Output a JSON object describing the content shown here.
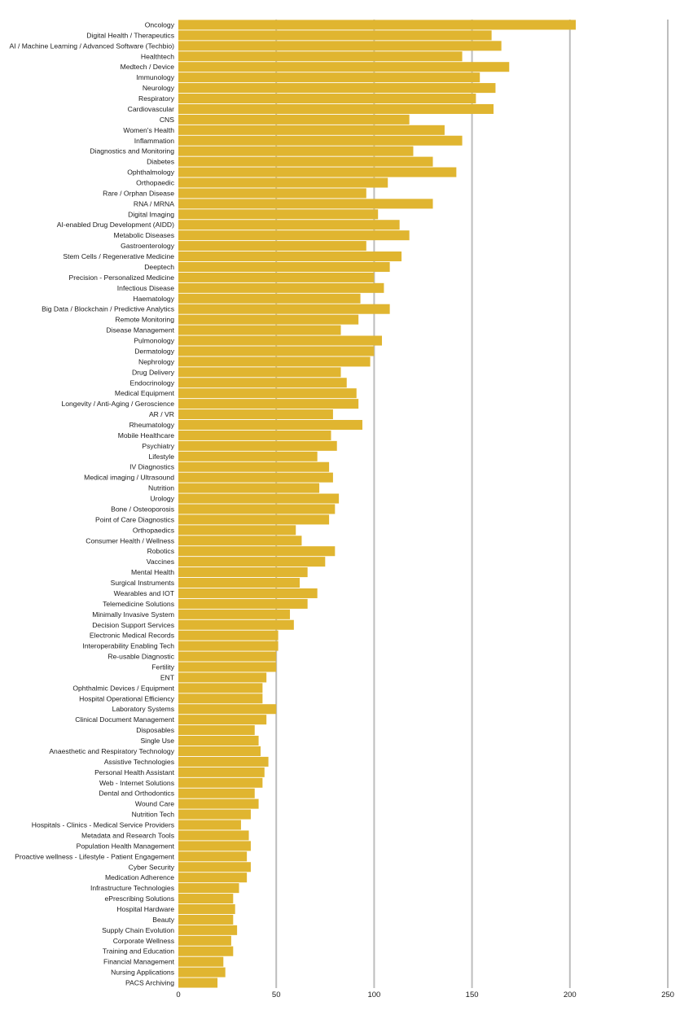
{
  "chart_data": {
    "type": "bar",
    "orientation": "horizontal",
    "bar_color": "#E0B530",
    "grid": true,
    "xlim": [
      0,
      250
    ],
    "xticks": [
      0,
      50,
      100,
      150,
      200,
      250
    ],
    "categories": [
      "Oncology",
      "Digital Health / Therapeutics",
      "AI / Machine Learning / Advanced Software (Techbio)",
      "Healthtech",
      "Medtech / Device",
      "Immunology",
      "Neurology",
      "Respiratory",
      "Cardiovascular",
      "CNS",
      "Women's Health",
      "Inflammation",
      "Diagnostics and Monitoring",
      "Diabetes",
      "Ophthalmology",
      "Orthopaedic",
      "Rare / Orphan Disease",
      "RNA / MRNA",
      "Digital Imaging",
      "AI-enabled Drug Development (AIDD)",
      "Metabolic Diseases",
      "Gastroenterology",
      "Stem Cells / Regenerative Medicine",
      "Deeptech",
      "Precision - Personalized Medicine",
      "Infectious Disease",
      "Haematology",
      "Big Data / Blockchain / Predictive Analytics",
      "Remote Monitoring",
      "Disease Management",
      "Pulmonology",
      "Dermatology",
      "Nephrology",
      "Drug Delivery",
      "Endocrinology",
      "Medical Equipment",
      "Longevity / Anti-Aging / Geroscience",
      "AR / VR",
      "Rheumatology",
      "Mobile Healthcare",
      "Psychiatry",
      "Lifestyle",
      "IV Diagnostics",
      "Medical imaging / Ultrasound",
      "Nutrition",
      "Urology",
      "Bone / Osteoporosis",
      "Point of Care Diagnostics",
      "Orthopaedics",
      "Consumer Health / Wellness",
      "Robotics",
      "Vaccines",
      "Mental Health",
      "Surgical Instruments",
      "Wearables and IOT",
      "Telemedicine Solutions",
      "Minimally Invasive System",
      "Decision Support Services",
      "Electronic Medical Records",
      "Interoperability Enabling Tech",
      "Re-usable Diagnostic",
      "Fertility",
      "ENT",
      "Ophthalmic Devices / Equipment",
      "Hospital Operational Efficiency",
      "Laboratory Systems",
      "Clinical Document Management",
      "Disposables",
      "Single Use",
      "Anaesthetic and Respiratory Technology",
      "Assistive Technologies",
      "Personal Health Assistant",
      "Web - Internet Solutions",
      "Dental and Orthodontics",
      "Wound Care",
      "Nutrition Tech",
      "Hospitals - Clinics - Medical Service Providers",
      "Metadata and Research Tools",
      "Population Health Management",
      "Proactive wellness - Lifestyle - Patient Engagement",
      "Cyber Security",
      "Medication Adherence",
      "Infrastructure Technologies",
      "ePrescribing Solutions",
      "Hospital Hardware",
      "Beauty",
      "Supply Chain Evolution",
      "Corporate Wellness",
      "Training and Education",
      "Financial Management",
      "Nursing Applications",
      "PACS Archiving"
    ],
    "values": [
      203,
      160,
      165,
      145,
      169,
      154,
      162,
      152,
      161,
      118,
      136,
      145,
      120,
      130,
      142,
      107,
      96,
      130,
      102,
      113,
      118,
      96,
      114,
      108,
      100,
      105,
      93,
      108,
      92,
      83,
      104,
      100,
      98,
      83,
      86,
      91,
      92,
      79,
      94,
      78,
      81,
      71,
      77,
      79,
      72,
      82,
      80,
      77,
      60,
      63,
      80,
      75,
      66,
      62,
      71,
      66,
      57,
      59,
      51,
      51,
      50,
      50,
      45,
      43,
      43,
      50,
      45,
      39,
      41,
      42,
      46,
      44,
      43,
      39,
      41,
      37,
      32,
      36,
      37,
      35,
      37,
      35,
      31,
      28,
      29,
      28,
      30,
      27,
      28,
      23,
      24,
      20
    ]
  }
}
